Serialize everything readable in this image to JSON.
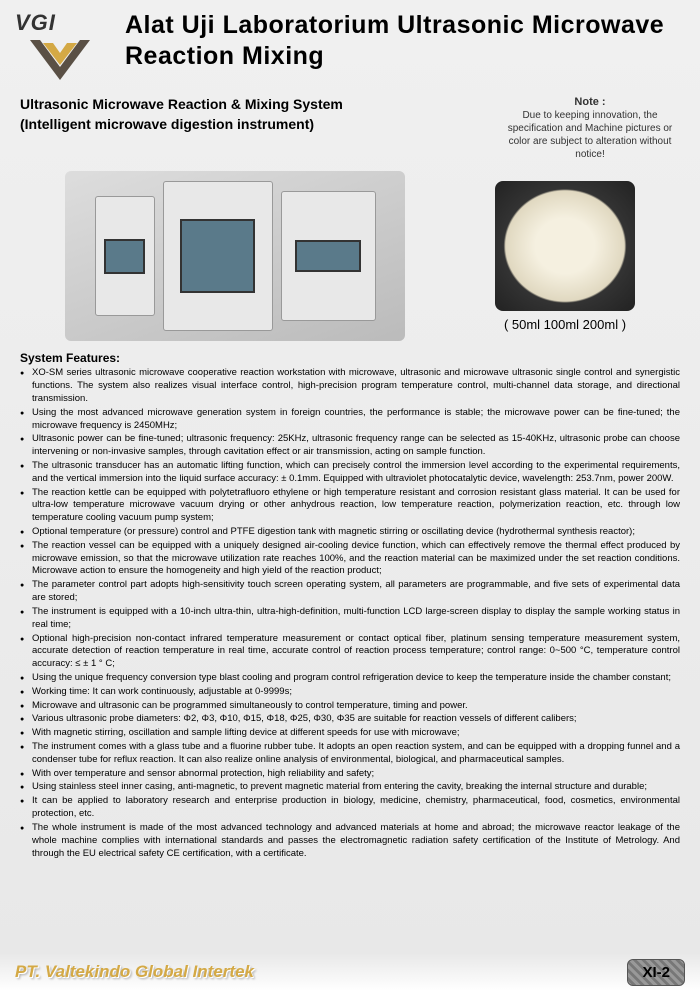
{
  "header": {
    "logo_text": "VGI",
    "title": "Alat Uji Laboratorium Ultrasonic Microwave Reaction Mixing"
  },
  "subtitle": {
    "line1": "Ultrasonic Microwave Reaction & Mixing System",
    "line2": "(Intelligent microwave digestion instrument)"
  },
  "note": {
    "title": "Note :",
    "body": "Due to keeping innovation, the specification and Machine pictures or color are subject to alteration without notice!"
  },
  "vessel_caption": "( 50ml  100ml  200ml )",
  "features_heading": "System Features:",
  "features": [
    "XO-SM series ultrasonic microwave cooperative reaction workstation with microwave, ultrasonic and microwave ultrasonic single control and synergistic functions. The system also realizes visual interface control, high-precision program temperature control, multi-channel data storage, and directional transmission.",
    "Using the most advanced microwave generation system in foreign countries, the performance is stable; the microwave power can be fine-tuned; the microwave frequency is 2450MHz;",
    "Ultrasonic power can be fine-tuned; ultrasonic frequency: 25KHz, ultrasonic frequency range can be selected as 15-40KHz, ultrasonic probe can choose intervening or non-invasive samples, through cavitation effect or air transmission, acting on sample function.",
    "The ultrasonic transducer has an automatic lifting function, which can precisely control the immersion level according to the experimental requirements, and the vertical immersion into the liquid surface accuracy: ± 0.1mm. Equipped with ultraviolet photocatalytic device, wavelength: 253.7nm, power 200W.",
    "The reaction kettle can be equipped with polytetrafluoro ethylene or high temperature resistant and corrosion resistant glass material. It can be used for ultra-low temperature microwave vacuum drying or other anhydrous reaction, low temperature reaction, polymerization reaction, etc. through low temperature cooling vacuum pump system;",
    "Optional temperature (or pressure) control and PTFE digestion tank with magnetic stirring or oscillating device (hydrothermal synthesis reactor);",
    "The reaction vessel can be equipped with a uniquely designed air-cooling device function, which can effectively remove the thermal effect produced by microwave emission, so that the microwave utilization rate reaches 100%, and the reaction material can be maximized under the set reaction conditions. Microwave action to ensure the homogeneity and high yield of the reaction product;",
    "The parameter control part adopts high-sensitivity touch screen operating system, all parameters are programmable, and five sets of experimental data are stored;",
    "The instrument is equipped with a 10-inch ultra-thin, ultra-high-definition, multi-function LCD large-screen display to display the sample working status in real time;",
    "Optional high-precision non-contact infrared temperature measurement or contact optical fiber, platinum sensing temperature measurement system, accurate detection of reaction temperature in real time, accurate control of reaction process temperature; control range: 0~500 °C, temperature control accuracy: ≤ ± 1 ° C;",
    "Using the unique frequency conversion type blast cooling and program control refrigeration device to keep the temperature inside the chamber constant;",
    "Working time: It can work continuously, adjustable at 0-9999s;",
    "Microwave and ultrasonic can be programmed simultaneously to control temperature, timing and power.",
    "Various ultrasonic probe diameters: Φ2, Φ3, Φ10, Φ15, Φ18, Φ25, Φ30, Φ35 are suitable for reaction vessels of different calibers;",
    "With magnetic stirring, oscillation and sample lifting device at different speeds for use with microwave;",
    "The instrument comes with a glass tube and a fluorine rubber tube. It adopts an open reaction system, and can be equipped with a dropping funnel and a condenser tube for reflux reaction. It can also realize online analysis of environmental, biological, and pharmaceutical samples.",
    "With over temperature and sensor abnormal protection, high reliability and safety;",
    "Using stainless steel inner casing, anti-magnetic, to prevent magnetic material from entering the cavity, breaking the internal structure and durable;",
    "It can be applied to laboratory research and enterprise production in biology, medicine, chemistry, pharmaceutical, food, cosmetics, environmental protection, etc.",
    "The whole instrument is made of the most advanced technology and advanced materials at home and abroad; the microwave reactor leakage of the whole machine complies with international standards and passes the electromagnetic radiation safety certification of the Institute of Metrology. And through the EU electrical safety CE certification, with a certificate."
  ],
  "footer": {
    "company": "PT. Valtekindo Global Intertek",
    "page": "XI-2"
  },
  "colors": {
    "accent": "#d4a945",
    "logo_orange": "#d48820",
    "logo_dark": "#5a5045"
  }
}
